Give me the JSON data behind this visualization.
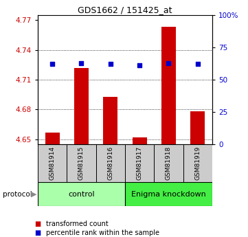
{
  "title": "GDS1662 / 151425_at",
  "samples": [
    "GSM81914",
    "GSM81915",
    "GSM81916",
    "GSM81917",
    "GSM81918",
    "GSM81919"
  ],
  "red_values": [
    4.657,
    4.722,
    4.693,
    4.652,
    4.763,
    4.678
  ],
  "blue_values": [
    62,
    63,
    62,
    61,
    63,
    62
  ],
  "ylim_left": [
    4.645,
    4.775
  ],
  "ylim_right": [
    0,
    100
  ],
  "left_ticks": [
    4.65,
    4.68,
    4.71,
    4.74,
    4.77
  ],
  "right_ticks": [
    0,
    25,
    50,
    75,
    100
  ],
  "right_tick_labels": [
    "0",
    "25",
    "50",
    "75",
    "100%"
  ],
  "bar_color": "#cc0000",
  "dot_color": "#0000cc",
  "control_label": "control",
  "knockdown_label": "Enigma knockdown",
  "protocol_label": "protocol",
  "legend_red": "transformed count",
  "legend_blue": "percentile rank within the sample",
  "baseline": 4.645,
  "bg_color_control": "#aaffaa",
  "bg_color_knockdown": "#44ee44",
  "tick_label_color_left": "#cc0000",
  "tick_label_color_right": "#0000cc",
  "sample_box_color": "#cccccc",
  "n_control": 3,
  "n_knockdown": 3
}
